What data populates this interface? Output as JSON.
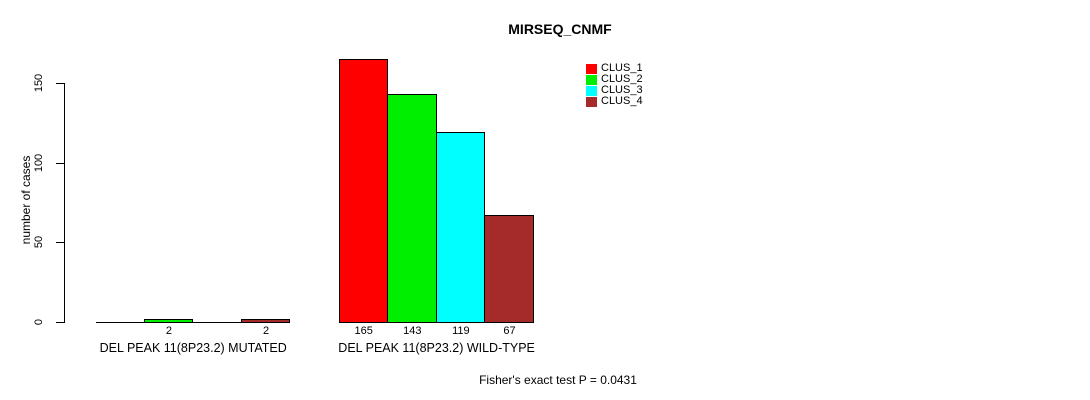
{
  "title": "MIRSEQ_CNMF",
  "chart_data": {
    "type": "bar",
    "title": "MIRSEQ_CNMF",
    "xlabel": "",
    "ylabel": "number of cases",
    "ylim": [
      0,
      165
    ],
    "yticks": [
      0,
      50,
      100,
      150
    ],
    "grid": false,
    "legend_position": "top-right",
    "series": [
      {
        "name": "CLUS_1",
        "color": "#FF0000"
      },
      {
        "name": "CLUS_2",
        "color": "#00EE00"
      },
      {
        "name": "CLUS_3",
        "color": "#00FFFF"
      },
      {
        "name": "CLUS_4",
        "color": "#A52A2A"
      }
    ],
    "categories": [
      "DEL PEAK 11(8P23.2) MUTATED",
      "DEL PEAK 11(8P23.2) WILD-TYPE"
    ],
    "groups": [
      {
        "label": "DEL PEAK 11(8P23.2) MUTATED",
        "values": [
          0,
          2,
          0,
          2
        ],
        "bar_labels": [
          "",
          "2",
          "",
          "2"
        ]
      },
      {
        "label": "DEL PEAK 11(8P23.2) WILD-TYPE",
        "values": [
          165,
          143,
          119,
          67
        ],
        "bar_labels": [
          "165",
          "143",
          "119",
          "67"
        ]
      }
    ],
    "annotation": "Fisher's exact test P = 0.0431"
  }
}
